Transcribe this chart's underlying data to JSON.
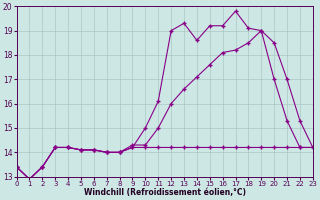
{
  "bg_color": "#cde8e4",
  "line_color": "#880088",
  "grid_color": "#aac8c4",
  "xlabel": "Windchill (Refroidissement éolien,°C)",
  "xmin": 0,
  "xmax": 23,
  "ymin": 13,
  "ymax": 20,
  "line1_y": [
    13.4,
    12.9,
    13.4,
    14.2,
    14.2,
    14.1,
    14.1,
    14.0,
    14.0,
    14.2,
    14.2,
    14.2,
    14.2,
    14.2,
    14.2,
    14.2,
    14.2,
    14.2,
    14.2,
    14.2,
    14.2,
    14.2,
    14.2,
    14.2
  ],
  "line2_y": [
    13.4,
    12.9,
    13.4,
    14.2,
    14.2,
    14.1,
    14.1,
    14.0,
    14.0,
    14.2,
    15.0,
    16.1,
    19.0,
    19.3,
    18.6,
    19.2,
    19.2,
    19.8,
    19.1,
    19.0,
    17.0,
    15.3,
    14.2,
    14.2
  ],
  "line3_y": [
    13.4,
    12.9,
    13.4,
    14.2,
    14.2,
    14.1,
    14.1,
    14.0,
    14.0,
    14.3,
    14.3,
    15.0,
    16.0,
    16.6,
    17.1,
    17.6,
    18.1,
    18.2,
    18.5,
    19.0,
    18.5,
    17.0,
    15.3,
    14.2
  ]
}
